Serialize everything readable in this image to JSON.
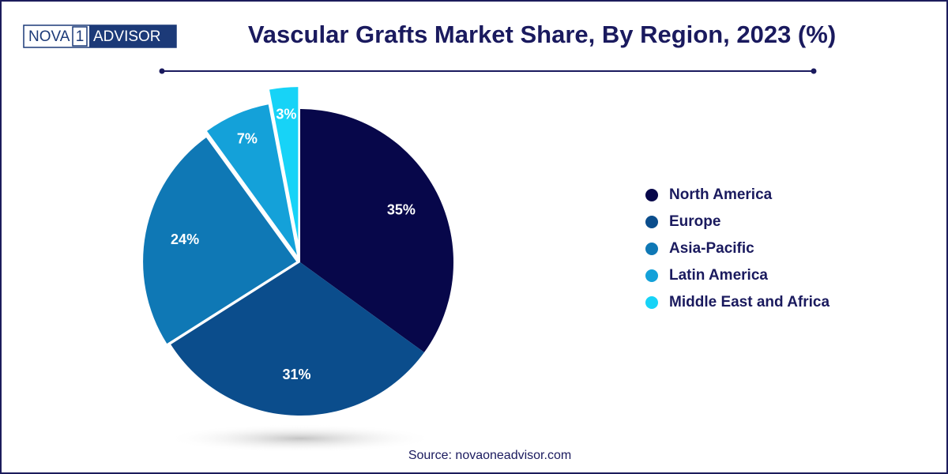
{
  "brand": {
    "parts": [
      "NOVA",
      "1",
      "ADVISOR"
    ]
  },
  "chart_data": {
    "type": "pie",
    "title": "Vascular Grafts Market Share, By Region, 2023 (%)",
    "categories": [
      "North America",
      "Europe",
      "Asia-Pacific",
      "Latin America",
      "Middle East and Africa"
    ],
    "values": [
      35,
      31,
      24,
      7,
      3
    ],
    "value_labels": [
      "35%",
      "31%",
      "24%",
      "7%",
      "3%"
    ],
    "colors": [
      "#07074a",
      "#0b4d8c",
      "#0f78b5",
      "#14a1d9",
      "#17d3f7"
    ],
    "legend": "right",
    "source": "Source: novaoneadvisor.com"
  }
}
